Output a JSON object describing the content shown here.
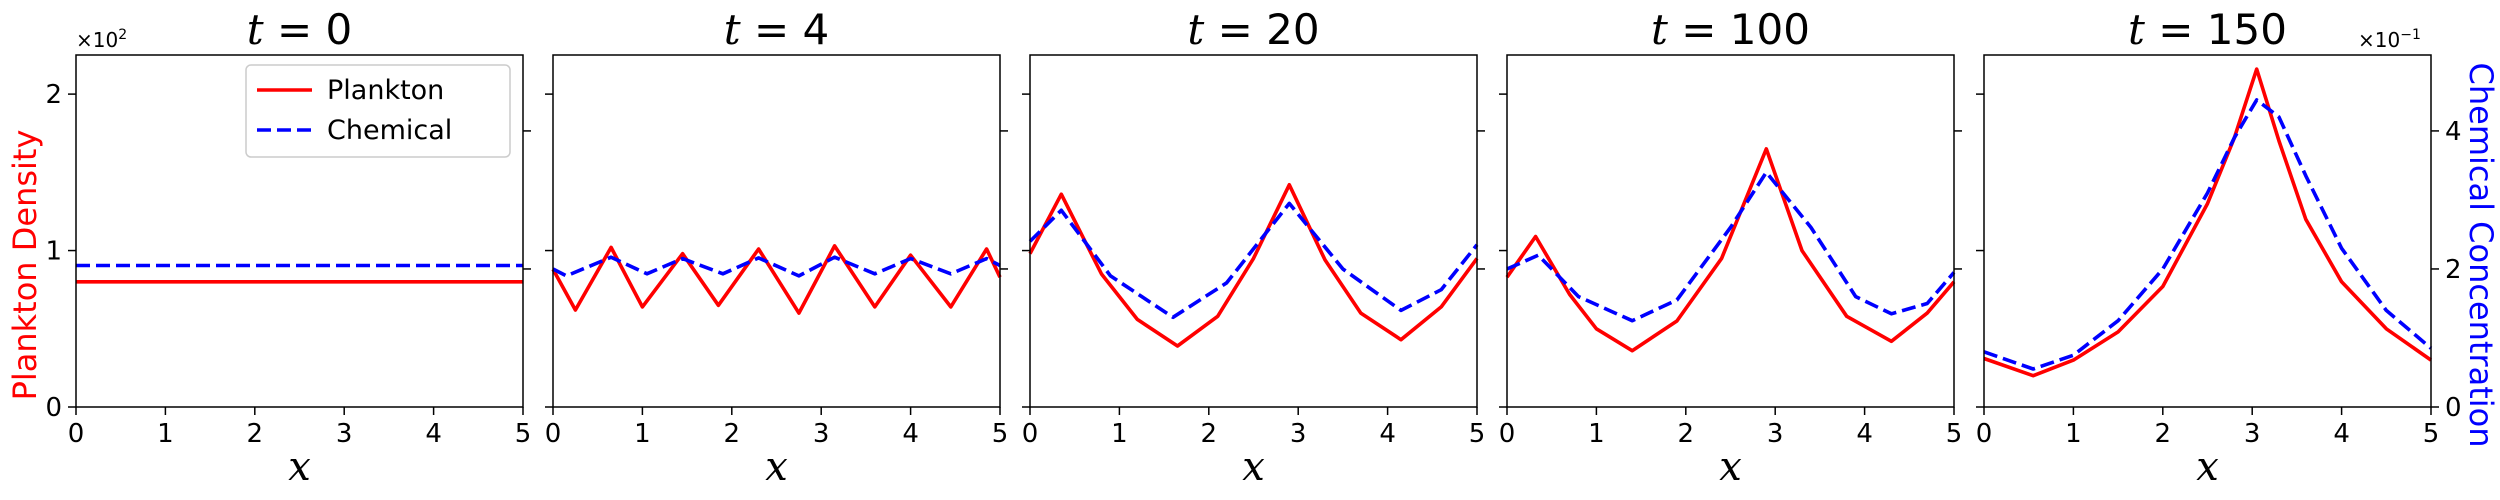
{
  "figure": {
    "left_ylabel": "Plankton Density",
    "right_ylabel": "Chemical Concentration",
    "left_offset_base": "×10",
    "left_offset_exp": "2",
    "right_offset_base": "×10",
    "right_offset_exp": "−1",
    "legend": {
      "plankton_label": "Plankton",
      "chemical_label": "Chemical"
    }
  },
  "colors": {
    "plankton": "#ff0000",
    "chemical": "#0000ff"
  },
  "chart_data": [
    {
      "type": "line",
      "title": "t = 0",
      "title_var": "t",
      "title_val": "0",
      "xlabel": "x",
      "xlim": [
        0,
        5
      ],
      "xticks": [
        0,
        1,
        2,
        3,
        4,
        5
      ],
      "ylim_left": [
        0,
        2.25
      ],
      "yticks_left": [
        0,
        1,
        2
      ],
      "ylim_right": [
        0,
        5.1
      ],
      "yticks_right": [
        2,
        4
      ],
      "legend": "top-right",
      "series": [
        {
          "name": "Plankton",
          "axis": "left",
          "style": "solid",
          "x": [
            0,
            5
          ],
          "y": [
            0.8,
            0.8
          ]
        },
        {
          "name": "Chemical",
          "axis": "right",
          "style": "dashed",
          "x": [
            0,
            5
          ],
          "y": [
            2.05,
            2.05
          ]
        }
      ]
    },
    {
      "type": "line",
      "title": "t = 4",
      "title_var": "t",
      "title_val": "4",
      "xlabel": "x",
      "xlim": [
        0,
        5
      ],
      "xticks": [
        0,
        1,
        2,
        3,
        4,
        5
      ],
      "ylim_left": [
        0,
        2.25
      ],
      "yticks_left": [
        0,
        1,
        2
      ],
      "ylim_right": [
        0,
        5.1
      ],
      "yticks_right": [
        2,
        4
      ],
      "series": [
        {
          "name": "Plankton",
          "axis": "left",
          "style": "solid",
          "x": [
            0,
            0.25,
            0.65,
            1.0,
            1.45,
            1.85,
            2.3,
            2.75,
            3.15,
            3.6,
            4.0,
            4.45,
            4.85,
            5.0
          ],
          "y": [
            0.88,
            0.62,
            1.02,
            0.64,
            0.98,
            0.65,
            1.01,
            0.6,
            1.03,
            0.64,
            0.97,
            0.64,
            1.01,
            0.83
          ]
        },
        {
          "name": "Chemical",
          "axis": "right",
          "style": "dashed",
          "x": [
            0,
            0.15,
            0.65,
            1.05,
            1.45,
            1.9,
            2.3,
            2.75,
            3.15,
            3.6,
            4.0,
            4.45,
            4.85,
            5.0
          ],
          "y": [
            2.0,
            1.9,
            2.17,
            1.93,
            2.15,
            1.93,
            2.16,
            1.9,
            2.17,
            1.93,
            2.15,
            1.93,
            2.15,
            2.05
          ]
        }
      ]
    },
    {
      "type": "line",
      "title": "t = 20",
      "title_var": "t",
      "title_val": "20",
      "xlabel": "x",
      "xlim": [
        0,
        5
      ],
      "xticks": [
        0,
        1,
        2,
        3,
        4,
        5
      ],
      "ylim_left": [
        0,
        2.25
      ],
      "yticks_left": [
        0,
        1,
        2
      ],
      "ylim_right": [
        0,
        5.1
      ],
      "yticks_right": [
        2,
        4
      ],
      "series": [
        {
          "name": "Plankton",
          "axis": "left",
          "style": "solid",
          "x": [
            0,
            0.35,
            0.8,
            1.2,
            1.65,
            2.1,
            2.5,
            2.9,
            3.3,
            3.7,
            4.15,
            4.6,
            5.0
          ],
          "y": [
            0.98,
            1.36,
            0.85,
            0.56,
            0.39,
            0.58,
            0.95,
            1.42,
            0.94,
            0.6,
            0.43,
            0.64,
            0.95
          ]
        },
        {
          "name": "Chemical",
          "axis": "right",
          "style": "dashed",
          "x": [
            0,
            0.35,
            0.9,
            1.6,
            2.2,
            2.9,
            3.5,
            4.15,
            4.6,
            5.0
          ],
          "y": [
            2.4,
            2.85,
            1.9,
            1.3,
            1.8,
            2.95,
            2.0,
            1.4,
            1.7,
            2.35
          ]
        }
      ]
    },
    {
      "type": "line",
      "title": "t = 100",
      "title_var": "t",
      "title_val": "100",
      "xlabel": "x",
      "xlim": [
        0,
        5
      ],
      "xticks": [
        0,
        1,
        2,
        3,
        4,
        5
      ],
      "ylim_left": [
        0,
        2.25
      ],
      "yticks_left": [
        0,
        1,
        2
      ],
      "ylim_right": [
        0,
        5.1
      ],
      "yticks_right": [
        2,
        4
      ],
      "series": [
        {
          "name": "Plankton",
          "axis": "left",
          "style": "solid",
          "x": [
            0,
            0.32,
            0.7,
            1.0,
            1.4,
            1.9,
            2.4,
            2.9,
            3.3,
            3.8,
            4.3,
            4.7,
            5.0
          ],
          "y": [
            0.83,
            1.09,
            0.72,
            0.5,
            0.36,
            0.55,
            0.95,
            1.65,
            1.0,
            0.58,
            0.42,
            0.6,
            0.8
          ]
        },
        {
          "name": "Chemical",
          "axis": "right",
          "style": "dashed",
          "x": [
            0,
            0.35,
            0.8,
            1.4,
            1.9,
            2.5,
            2.9,
            3.4,
            3.9,
            4.3,
            4.7,
            5.0
          ],
          "y": [
            2.0,
            2.2,
            1.6,
            1.25,
            1.55,
            2.6,
            3.4,
            2.6,
            1.6,
            1.35,
            1.5,
            1.95
          ]
        }
      ]
    },
    {
      "type": "line",
      "title": "t = 150",
      "title_var": "t",
      "title_val": "150",
      "xlabel": "x",
      "xlim": [
        0,
        5
      ],
      "xticks": [
        0,
        1,
        2,
        3,
        4,
        5
      ],
      "ylim_left": [
        0,
        2.25
      ],
      "yticks_left": [
        0,
        1,
        2
      ],
      "ylim_right": [
        0,
        5.1
      ],
      "yticks_right": [
        2,
        4
      ],
      "series": [
        {
          "name": "Plankton",
          "axis": "left",
          "style": "solid",
          "x": [
            0,
            0.55,
            1.0,
            1.5,
            2.0,
            2.5,
            2.8,
            3.05,
            3.3,
            3.6,
            4.0,
            4.5,
            5.0
          ],
          "y": [
            0.31,
            0.2,
            0.3,
            0.48,
            0.77,
            1.3,
            1.72,
            2.16,
            1.7,
            1.2,
            0.8,
            0.5,
            0.3
          ]
        },
        {
          "name": "Chemical",
          "axis": "right",
          "style": "dashed",
          "x": [
            0,
            0.55,
            1.0,
            1.5,
            2.0,
            2.5,
            2.8,
            3.05,
            3.3,
            3.6,
            4.0,
            4.5,
            5.0
          ],
          "y": [
            0.8,
            0.55,
            0.75,
            1.25,
            2.0,
            3.1,
            3.9,
            4.45,
            4.2,
            3.35,
            2.3,
            1.4,
            0.85
          ]
        }
      ]
    }
  ]
}
